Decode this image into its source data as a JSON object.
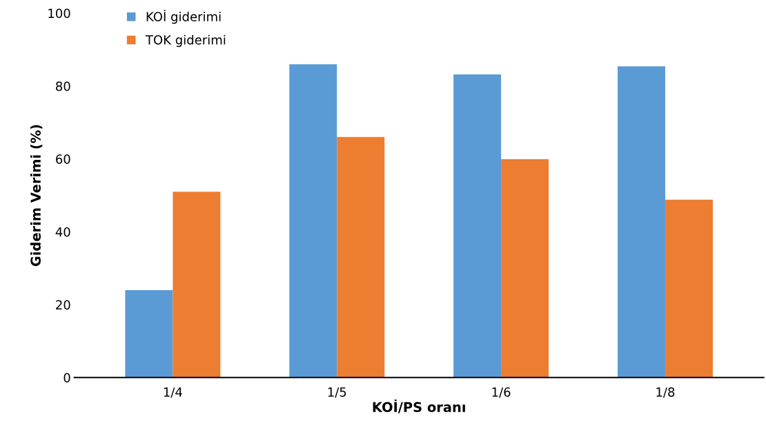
{
  "chart_data": {
    "type": "bar",
    "xlabel": "KOİ/PS oranı",
    "ylabel": "Giderim Verimi (%)",
    "categories": [
      "1/4",
      "1/5",
      "1/6",
      "1/8"
    ],
    "series": [
      {
        "name": "KOİ giderimi",
        "color": "#5b9bd5",
        "values": [
          24.0,
          86.0,
          83.2,
          85.4
        ]
      },
      {
        "name": "TOK giderimi",
        "color": "#ed7d31",
        "values": [
          51.0,
          66.0,
          59.9,
          48.8
        ]
      }
    ],
    "ylim": [
      0,
      100
    ],
    "yticks": [
      0,
      20,
      40,
      60,
      80,
      100
    ],
    "grid": false,
    "legend": "top left"
  }
}
